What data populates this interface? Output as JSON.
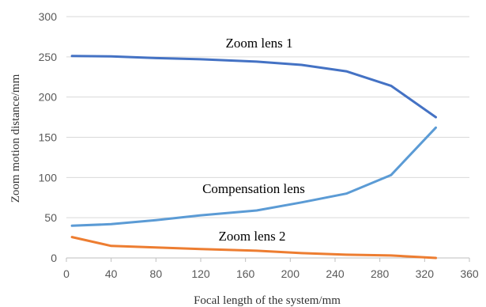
{
  "chart_data": {
    "type": "line",
    "xlabel": "Focal length of the system/mm",
    "ylabel": "Zoom motion distance/mm",
    "xlim": [
      0,
      360
    ],
    "ylim": [
      0,
      300
    ],
    "x_ticks": [
      0,
      40,
      80,
      120,
      160,
      200,
      240,
      280,
      320,
      360
    ],
    "y_ticks": [
      0,
      50,
      100,
      150,
      200,
      250,
      300
    ],
    "grid": "horizontal",
    "legend": "none",
    "series": [
      {
        "name": "Zoom lens 1",
        "color": "#4472C4",
        "x": [
          5,
          40,
          80,
          120,
          170,
          210,
          250,
          290,
          330
        ],
        "y": [
          251,
          250.5,
          248.5,
          247,
          244,
          240,
          232,
          214,
          175
        ]
      },
      {
        "name": "Compensation lens",
        "color": "#5B9BD5",
        "x": [
          5,
          40,
          80,
          120,
          170,
          210,
          250,
          290,
          330
        ],
        "y": [
          40,
          42,
          47,
          53,
          59,
          69,
          80,
          103,
          162
        ]
      },
      {
        "name": "Zoom lens 2",
        "color": "#ED7D31",
        "x": [
          5,
          40,
          80,
          120,
          170,
          210,
          250,
          290,
          330
        ],
        "y": [
          26,
          15,
          13,
          11,
          9,
          6,
          4,
          3,
          0
        ]
      }
    ]
  }
}
